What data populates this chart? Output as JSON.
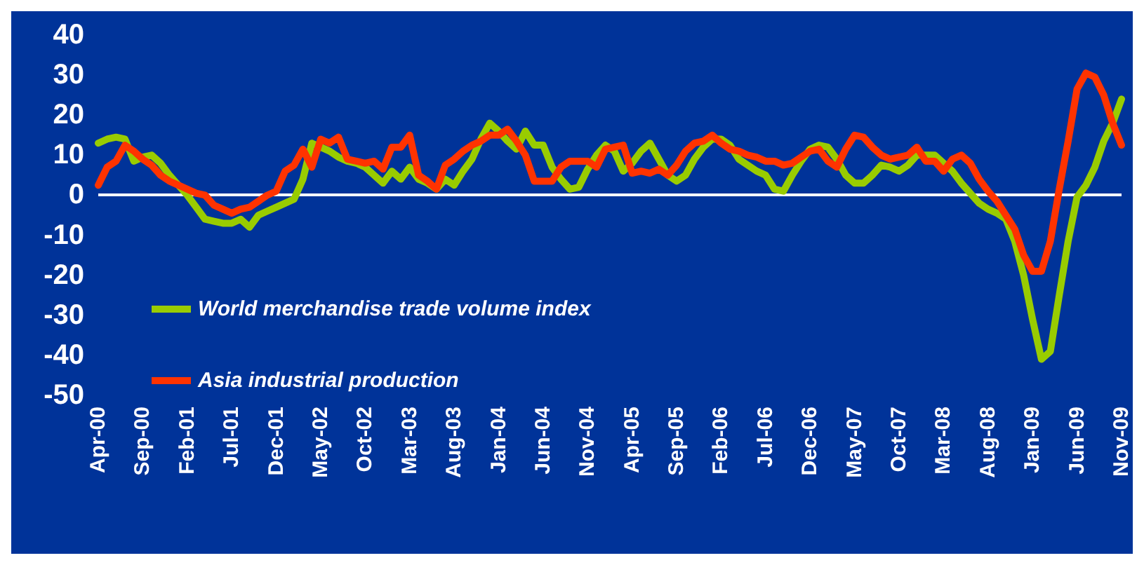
{
  "chart_data": {
    "type": "line",
    "categories": [
      "Apr-00",
      null,
      null,
      null,
      null,
      "Sep-00",
      null,
      null,
      null,
      null,
      "Feb-01",
      null,
      null,
      null,
      null,
      "Jul-01",
      null,
      null,
      null,
      null,
      "Dec-01",
      null,
      null,
      null,
      null,
      "May-02",
      null,
      null,
      null,
      null,
      "Oct-02",
      null,
      null,
      null,
      null,
      "Mar-03",
      null,
      null,
      null,
      null,
      "Aug-03",
      null,
      null,
      null,
      null,
      "Jan-04",
      null,
      null,
      null,
      null,
      "Jun-04",
      null,
      null,
      null,
      null,
      "Nov-04",
      null,
      null,
      null,
      null,
      "Apr-05",
      null,
      null,
      null,
      null,
      "Sep-05",
      null,
      null,
      null,
      null,
      "Feb-06",
      null,
      null,
      null,
      null,
      "Jul-06",
      null,
      null,
      null,
      null,
      "Dec-06",
      null,
      null,
      null,
      null,
      "May-07",
      null,
      null,
      null,
      null,
      "Oct-07",
      null,
      null,
      null,
      null,
      "Mar-08",
      null,
      null,
      null,
      null,
      "Aug-08",
      null,
      null,
      null,
      null,
      "Jan-09",
      null,
      null,
      null,
      null,
      "Jun-09",
      null,
      null,
      null,
      null,
      "Nov-09"
    ],
    "series": [
      {
        "name": "World merchandise trade volume index",
        "color": "#99cc00",
        "values": [
          13,
          14,
          14.5,
          14,
          8.5,
          9.5,
          10,
          8,
          5,
          2.5,
          0,
          -3,
          -6,
          -6.5,
          -7,
          -7,
          -6,
          -8,
          -5,
          -4,
          -3,
          -2,
          -1,
          4,
          13,
          12,
          11,
          9.5,
          8.5,
          8,
          7,
          5,
          3,
          6,
          4,
          7,
          4,
          3,
          1.5,
          4,
          2.5,
          6,
          9,
          14,
          18,
          16,
          13.5,
          11.5,
          16,
          12.5,
          12.5,
          7,
          4,
          1.5,
          2,
          6.5,
          10,
          12.5,
          11,
          6,
          8,
          11,
          13,
          9,
          5,
          3.5,
          5,
          9,
          12,
          14,
          14,
          12.5,
          9,
          7.5,
          6,
          5,
          1.5,
          1,
          5,
          8.5,
          11.5,
          12.5,
          12,
          9,
          5,
          3,
          3,
          5,
          7.5,
          7,
          6,
          7.5,
          10,
          10,
          10,
          8,
          6,
          3,
          0.5,
          -2,
          -3.5,
          -4.5,
          -6,
          -11.5,
          -20,
          -31,
          -41,
          -39,
          -25,
          -11.5,
          -0.5,
          2.5,
          7,
          13.5,
          18,
          24
        ]
      },
      {
        "name": "Asia industrial production",
        "color": "#ff3300",
        "values": [
          2.5,
          7,
          8.5,
          12.5,
          11,
          9,
          7.5,
          5,
          3.5,
          2.5,
          1.5,
          0.5,
          0,
          -2.5,
          -3.5,
          -4.5,
          -3.5,
          -3,
          -1.5,
          0,
          1,
          6,
          7.5,
          11.5,
          7,
          14,
          13,
          14.5,
          9,
          8.5,
          8,
          8.5,
          6.5,
          12,
          12,
          15,
          5,
          3.5,
          1.5,
          7.5,
          9,
          11,
          12.5,
          13.5,
          15,
          15,
          16.5,
          13.5,
          10,
          3.5,
          3.5,
          3.5,
          7,
          8.5,
          8.5,
          8.5,
          7,
          11.5,
          12,
          12.5,
          5.5,
          6,
          5.5,
          6.5,
          5,
          7.5,
          11,
          13,
          13.5,
          15,
          13,
          11.5,
          11,
          10,
          9.5,
          8.5,
          8.5,
          7.5,
          8,
          9.5,
          11,
          11.5,
          8.5,
          7,
          11.5,
          15,
          14.5,
          12,
          10,
          9,
          9.5,
          10,
          12,
          8.5,
          8.5,
          6,
          9,
          10,
          8,
          4,
          1,
          -1.5,
          -5,
          -8.5,
          -15,
          -19,
          -19,
          -11.5,
          1.5,
          13.5,
          26.5,
          30.5,
          29.5,
          25,
          18,
          12.5
        ]
      }
    ],
    "ylim": [
      -50,
      40
    ],
    "yticks": [
      -50,
      -40,
      -30,
      -20,
      -10,
      0,
      10,
      20,
      30,
      40
    ],
    "ref_lines": [
      {
        "axis": "y",
        "value": 0,
        "color": "#ffffff"
      }
    ],
    "grid": false,
    "legend": "bottom left",
    "marker": "none",
    "line_style": "solid"
  }
}
